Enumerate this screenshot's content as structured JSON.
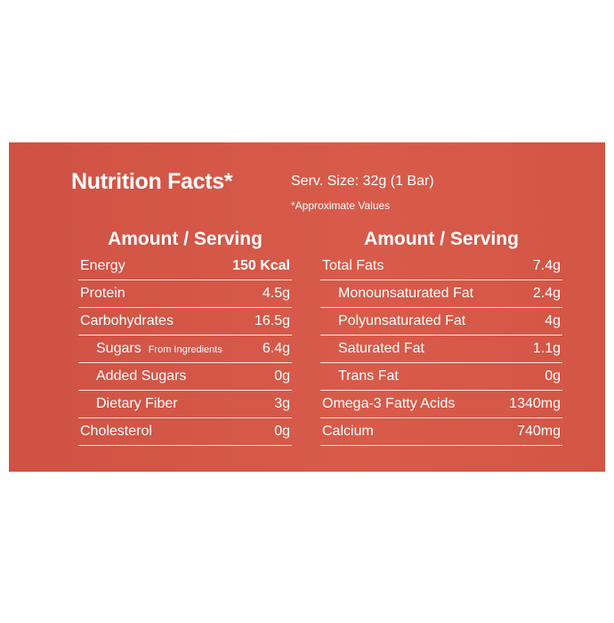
{
  "title": "Nutrition Facts*",
  "serving_size": "Serv. Size: 32g (1 Bar)",
  "footnote": "*Approximate Values",
  "left": {
    "header": "Amount / Serving",
    "rows": [
      {
        "label": "Energy",
        "value": "150 Kcal"
      },
      {
        "label": "Protein",
        "value": "4.5g"
      },
      {
        "label": "Carbohydrates",
        "value": "16.5g"
      },
      {
        "label": "Sugars",
        "note": "From Ingredients",
        "value": "6.4g"
      },
      {
        "label": "Added Sugars",
        "value": "0g"
      },
      {
        "label": "Dietary Fiber",
        "value": "3g"
      },
      {
        "label": "Cholesterol",
        "value": "0g"
      }
    ]
  },
  "right": {
    "header": "Amount / Serving",
    "rows": [
      {
        "label": "Total Fats",
        "value": "7.4g"
      },
      {
        "label": "Monounsaturated Fat",
        "value": "2.4g"
      },
      {
        "label": "Polyunsaturated Fat",
        "value": "4g"
      },
      {
        "label": "Saturated Fat",
        "value": "1.1g"
      },
      {
        "label": "Trans Fat",
        "value": "0g"
      },
      {
        "label": "Omega-3 Fatty Acids",
        "value": "1340mg"
      },
      {
        "label": "Calcium",
        "value": "740mg"
      }
    ]
  }
}
